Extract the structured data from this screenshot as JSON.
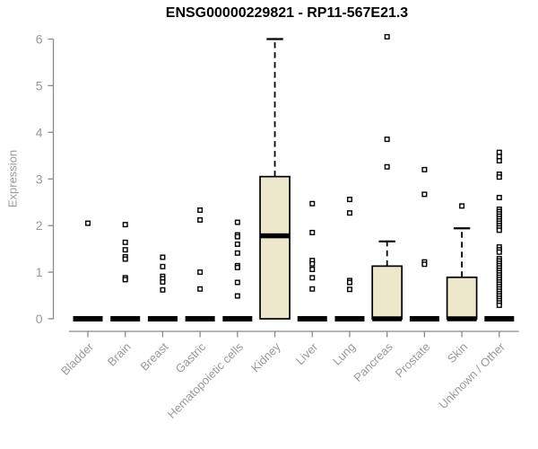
{
  "chart_data": {
    "type": "boxplot",
    "title": "ENSG00000229821 - RP11-567E21.3",
    "ylabel": "Expression",
    "xlabel": "",
    "ylim": [
      0,
      6
    ],
    "yticks": [
      0,
      1,
      2,
      3,
      4,
      5,
      6
    ],
    "grid": false,
    "legend": "none",
    "colors": {
      "box_fill": "#EDE7CB",
      "box_stroke": "#000000",
      "median": "#000000",
      "axis": "#8A8A8A",
      "tick_label": "#9298A2",
      "category_label": "#999999",
      "title": "#000000",
      "outlier_fill": "#FFFFFF",
      "outlier_stroke": "#000000"
    },
    "categories": [
      "Bladder",
      "Brain",
      "Breast",
      "Gastric",
      "Hematopoietic cells",
      "Kidney",
      "Liver",
      "Lung",
      "Pancreas",
      "Prostate",
      "Skin",
      "Unknown / Other"
    ],
    "series": [
      {
        "name": "Bladder",
        "q1": 0,
        "median": 0,
        "q3": 0,
        "whisker_low": 0,
        "whisker_high": 0,
        "outliers": [
          2.05
        ]
      },
      {
        "name": "Brain",
        "q1": 0,
        "median": 0,
        "q3": 0,
        "whisker_low": 0,
        "whisker_high": 0,
        "outliers": [
          2.02,
          1.64,
          1.48,
          1.33,
          1.28,
          0.88,
          0.84
        ]
      },
      {
        "name": "Breast",
        "q1": 0,
        "median": 0,
        "q3": 0,
        "whisker_low": 0,
        "whisker_high": 0,
        "outliers": [
          1.32,
          1.12,
          0.91,
          0.86,
          0.79,
          0.62
        ]
      },
      {
        "name": "Gastric",
        "q1": 0,
        "median": 0,
        "q3": 0,
        "whisker_low": 0,
        "whisker_high": 0,
        "outliers": [
          2.33,
          2.12,
          1.0,
          0.64
        ]
      },
      {
        "name": "Hematopoietic cells",
        "q1": 0,
        "median": 0,
        "q3": 0,
        "whisker_low": 0,
        "whisker_high": 0,
        "outliers": [
          2.07,
          1.8,
          1.76,
          1.6,
          1.41,
          1.14,
          1.1,
          0.78,
          0.49
        ]
      },
      {
        "name": "Kidney",
        "q1": 0,
        "median": 1.78,
        "q3": 3.05,
        "whisker_low": 0,
        "whisker_high": 6.0,
        "outliers": []
      },
      {
        "name": "Liver",
        "q1": 0,
        "median": 0,
        "q3": 0,
        "whisker_low": 0,
        "whisker_high": 0,
        "outliers": [
          2.47,
          1.85,
          1.25,
          1.18,
          1.06,
          0.88,
          0.64
        ]
      },
      {
        "name": "Lung",
        "q1": 0,
        "median": 0,
        "q3": 0,
        "whisker_low": 0,
        "whisker_high": 0,
        "outliers": [
          2.56,
          2.27,
          0.82,
          0.78,
          0.63
        ]
      },
      {
        "name": "Pancreas",
        "q1": 0,
        "median": 0,
        "q3": 1.13,
        "whisker_low": 0,
        "whisker_high": 1.66,
        "outliers": [
          6.05,
          3.85,
          3.26
        ]
      },
      {
        "name": "Prostate",
        "q1": 0,
        "median": 0,
        "q3": 0,
        "whisker_low": 0,
        "whisker_high": 0,
        "outliers": [
          3.2,
          2.67,
          1.22,
          1.17
        ]
      },
      {
        "name": "Skin",
        "q1": 0,
        "median": 0,
        "q3": 0.89,
        "whisker_low": 0,
        "whisker_high": 1.94,
        "outliers": [
          2.42
        ]
      },
      {
        "name": "Unknown / Other",
        "q1": 0,
        "median": 0,
        "q3": 0,
        "whisker_low": 0,
        "whisker_high": 0,
        "outliers": [
          3.57,
          3.48,
          3.39,
          3.1,
          3.04,
          2.6,
          2.35,
          2.3,
          2.25,
          2.2,
          2.15,
          2.1,
          2.05,
          2.0,
          1.95,
          1.9,
          1.54,
          1.48,
          1.43,
          1.29,
          1.24,
          1.19,
          1.14,
          1.09,
          1.04,
          0.99,
          0.94,
          0.89,
          0.84,
          0.79,
          0.74,
          0.69,
          0.64,
          0.59,
          0.54,
          0.49,
          0.44,
          0.39,
          0.34,
          0.29
        ]
      }
    ]
  }
}
